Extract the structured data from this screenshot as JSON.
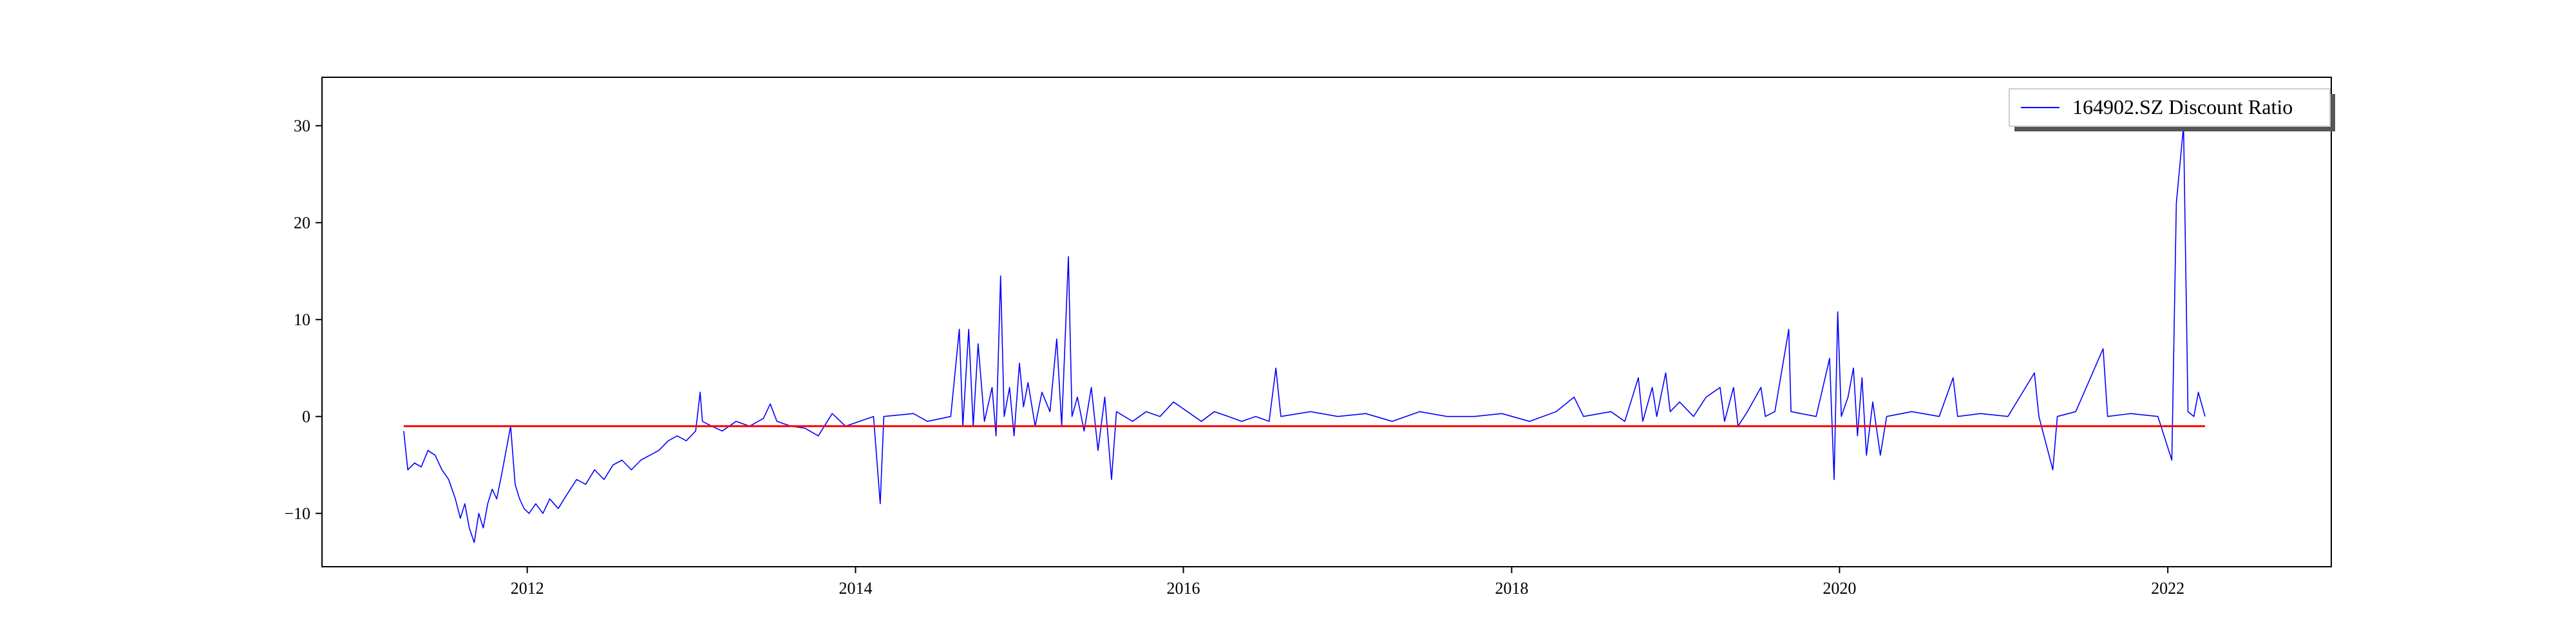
{
  "chart_data": {
    "type": "line",
    "title": "",
    "xlabel": "",
    "ylabel": "",
    "xlim": [
      "2010-10-01",
      "2022-12-31"
    ],
    "ylim": [
      -15.5,
      35.0
    ],
    "x_ticks": [
      "2012",
      "2014",
      "2016",
      "2018",
      "2020",
      "2022"
    ],
    "y_ticks": [
      -10,
      0,
      10,
      20,
      30
    ],
    "grid": false,
    "legend": {
      "position": "top-right",
      "entries": [
        "164902.SZ Discount Ratio"
      ]
    },
    "series": [
      {
        "name": "164902.SZ Discount Ratio",
        "color": "#0000ff",
        "points": [
          [
            "2011-04-01",
            -1.5
          ],
          [
            "2011-04-10",
            -5.5
          ],
          [
            "2011-04-25",
            -4.8
          ],
          [
            "2011-05-10",
            -5.2
          ],
          [
            "2011-05-25",
            -3.5
          ],
          [
            "2011-06-10",
            -4.0
          ],
          [
            "2011-06-25",
            -5.5
          ],
          [
            "2011-07-10",
            -6.5
          ],
          [
            "2011-07-25",
            -8.5
          ],
          [
            "2011-08-05",
            -10.5
          ],
          [
            "2011-08-15",
            -9.0
          ],
          [
            "2011-08-25",
            -11.5
          ],
          [
            "2011-09-05",
            -13.0
          ],
          [
            "2011-09-15",
            -10.0
          ],
          [
            "2011-09-25",
            -11.5
          ],
          [
            "2011-10-05",
            -9.0
          ],
          [
            "2011-10-15",
            -7.5
          ],
          [
            "2011-10-25",
            -8.5
          ],
          [
            "2011-11-05",
            -6.0
          ],
          [
            "2011-11-15",
            -3.5
          ],
          [
            "2011-11-25",
            -1.0
          ],
          [
            "2011-12-05",
            -7.0
          ],
          [
            "2011-12-15",
            -8.5
          ],
          [
            "2011-12-25",
            -9.5
          ],
          [
            "2012-01-05",
            -10.0
          ],
          [
            "2012-01-20",
            -9.0
          ],
          [
            "2012-02-05",
            -10.0
          ],
          [
            "2012-02-20",
            -8.5
          ],
          [
            "2012-03-10",
            -9.5
          ],
          [
            "2012-03-30",
            -8.0
          ],
          [
            "2012-04-20",
            -6.5
          ],
          [
            "2012-05-10",
            -7.0
          ],
          [
            "2012-05-30",
            -5.5
          ],
          [
            "2012-06-20",
            -6.5
          ],
          [
            "2012-07-10",
            -5.0
          ],
          [
            "2012-07-30",
            -4.5
          ],
          [
            "2012-08-20",
            -5.5
          ],
          [
            "2012-09-10",
            -4.5
          ],
          [
            "2012-09-30",
            -4.0
          ],
          [
            "2012-10-20",
            -3.5
          ],
          [
            "2012-11-10",
            -2.5
          ],
          [
            "2012-11-30",
            -2.0
          ],
          [
            "2012-12-20",
            -2.5
          ],
          [
            "2013-01-10",
            -1.5
          ],
          [
            "2013-01-20",
            2.5
          ],
          [
            "2013-01-25",
            -0.5
          ],
          [
            "2013-02-15",
            -1.0
          ],
          [
            "2013-03-10",
            -1.5
          ],
          [
            "2013-04-10",
            -0.5
          ],
          [
            "2013-05-10",
            -1.0
          ],
          [
            "2013-06-10",
            -0.2
          ],
          [
            "2013-06-25",
            1.3
          ],
          [
            "2013-07-10",
            -0.5
          ],
          [
            "2013-08-10",
            -1.0
          ],
          [
            "2013-09-10",
            -1.2
          ],
          [
            "2013-10-10",
            -2.0
          ],
          [
            "2013-11-10",
            0.3
          ],
          [
            "2013-12-10",
            -1.0
          ],
          [
            "2014-01-10",
            -0.5
          ],
          [
            "2014-02-10",
            0.0
          ],
          [
            "2014-02-25",
            -9.0
          ],
          [
            "2014-03-05",
            0.0
          ],
          [
            "2014-05-10",
            0.3
          ],
          [
            "2014-06-10",
            -0.5
          ],
          [
            "2014-08-01",
            0.0
          ],
          [
            "2014-08-20",
            9.0
          ],
          [
            "2014-08-28",
            -1.0
          ],
          [
            "2014-09-10",
            9.0
          ],
          [
            "2014-09-20",
            -1.0
          ],
          [
            "2014-10-01",
            7.5
          ],
          [
            "2014-10-15",
            -0.5
          ],
          [
            "2014-11-01",
            3.0
          ],
          [
            "2014-11-10",
            -2.0
          ],
          [
            "2014-11-20",
            14.5
          ],
          [
            "2014-11-28",
            0.0
          ],
          [
            "2014-12-10",
            3.0
          ],
          [
            "2014-12-20",
            -2.0
          ],
          [
            "2015-01-01",
            5.5
          ],
          [
            "2015-01-10",
            1.0
          ],
          [
            "2015-01-20",
            3.5
          ],
          [
            "2015-02-05",
            -1.0
          ],
          [
            "2015-02-20",
            2.5
          ],
          [
            "2015-03-10",
            0.5
          ],
          [
            "2015-03-25",
            8.0
          ],
          [
            "2015-04-05",
            -1.0
          ],
          [
            "2015-04-20",
            16.5
          ],
          [
            "2015-04-28",
            0.0
          ],
          [
            "2015-05-10",
            2.0
          ],
          [
            "2015-05-25",
            -1.5
          ],
          [
            "2015-06-10",
            3.0
          ],
          [
            "2015-06-25",
            -3.5
          ],
          [
            "2015-07-10",
            2.0
          ],
          [
            "2015-07-25",
            -6.5
          ],
          [
            "2015-08-05",
            0.5
          ],
          [
            "2015-09-10",
            -0.5
          ],
          [
            "2015-10-10",
            0.5
          ],
          [
            "2015-11-10",
            0.0
          ],
          [
            "2015-12-10",
            1.5
          ],
          [
            "2016-01-10",
            0.5
          ],
          [
            "2016-02-10",
            -0.5
          ],
          [
            "2016-03-10",
            0.5
          ],
          [
            "2016-04-10",
            0.0
          ],
          [
            "2016-05-10",
            -0.5
          ],
          [
            "2016-06-10",
            0.0
          ],
          [
            "2016-07-10",
            -0.5
          ],
          [
            "2016-07-25",
            5.0
          ],
          [
            "2016-08-05",
            0.0
          ],
          [
            "2016-10-10",
            0.5
          ],
          [
            "2016-12-10",
            0.0
          ],
          [
            "2017-02-10",
            0.3
          ],
          [
            "2017-04-10",
            -0.5
          ],
          [
            "2017-06-10",
            0.5
          ],
          [
            "2017-08-10",
            0.0
          ],
          [
            "2017-10-10",
            0.0
          ],
          [
            "2017-12-10",
            0.3
          ],
          [
            "2018-02-10",
            -0.5
          ],
          [
            "2018-04-10",
            0.5
          ],
          [
            "2018-05-20",
            2.0
          ],
          [
            "2018-06-10",
            0.0
          ],
          [
            "2018-08-10",
            0.5
          ],
          [
            "2018-09-10",
            -0.5
          ],
          [
            "2018-10-10",
            4.0
          ],
          [
            "2018-10-20",
            -0.5
          ],
          [
            "2018-11-10",
            3.0
          ],
          [
            "2018-11-20",
            0.0
          ],
          [
            "2018-12-10",
            4.5
          ],
          [
            "2018-12-20",
            0.5
          ],
          [
            "2019-01-10",
            1.5
          ],
          [
            "2019-02-10",
            0.0
          ],
          [
            "2019-03-10",
            2.0
          ],
          [
            "2019-04-10",
            3.0
          ],
          [
            "2019-04-20",
            -0.5
          ],
          [
            "2019-05-10",
            3.0
          ],
          [
            "2019-05-20",
            -1.0
          ],
          [
            "2019-06-10",
            0.5
          ],
          [
            "2019-07-10",
            3.0
          ],
          [
            "2019-07-20",
            0.0
          ],
          [
            "2019-08-10",
            0.5
          ],
          [
            "2019-09-10",
            9.0
          ],
          [
            "2019-09-15",
            0.5
          ],
          [
            "2019-11-10",
            0.0
          ],
          [
            "2019-12-10",
            6.0
          ],
          [
            "2019-12-20",
            -6.5
          ],
          [
            "2019-12-28",
            10.8
          ],
          [
            "2020-01-05",
            0.0
          ],
          [
            "2020-01-20",
            2.0
          ],
          [
            "2020-02-01",
            5.0
          ],
          [
            "2020-02-10",
            -2.0
          ],
          [
            "2020-02-20",
            4.0
          ],
          [
            "2020-03-01",
            -4.0
          ],
          [
            "2020-03-15",
            1.5
          ],
          [
            "2020-04-01",
            -4.0
          ],
          [
            "2020-04-15",
            0.0
          ],
          [
            "2020-06-10",
            0.5
          ],
          [
            "2020-08-10",
            0.0
          ],
          [
            "2020-09-10",
            4.0
          ],
          [
            "2020-09-20",
            0.0
          ],
          [
            "2020-11-10",
            0.3
          ],
          [
            "2021-01-10",
            0.0
          ],
          [
            "2021-03-10",
            4.5
          ],
          [
            "2021-03-20",
            0.0
          ],
          [
            "2021-04-20",
            -5.5
          ],
          [
            "2021-04-30",
            0.0
          ],
          [
            "2021-06-10",
            0.5
          ],
          [
            "2021-08-10",
            7.0
          ],
          [
            "2021-08-20",
            0.0
          ],
          [
            "2021-10-10",
            0.3
          ],
          [
            "2021-12-10",
            0.0
          ],
          [
            "2022-01-10",
            -4.5
          ],
          [
            "2022-01-20",
            22.0
          ],
          [
            "2022-02-05",
            30.0
          ],
          [
            "2022-02-15",
            0.5
          ],
          [
            "2022-02-28",
            0.0
          ],
          [
            "2022-03-10",
            2.5
          ],
          [
            "2022-03-25",
            0.0
          ]
        ]
      },
      {
        "name": "",
        "color": "#ff0000",
        "points": [
          [
            "2011-04-01",
            -1.0
          ],
          [
            "2022-03-25",
            -1.0
          ]
        ]
      }
    ]
  }
}
